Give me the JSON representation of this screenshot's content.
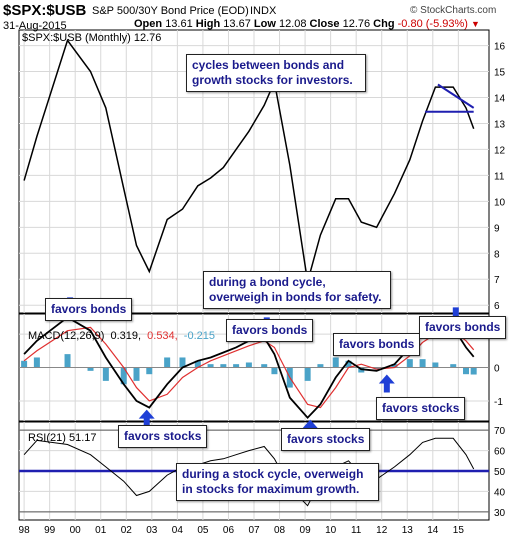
{
  "header": {
    "symbol": "$SPX:$USB",
    "description": "S&P 500/30Y Bond Price (EOD)",
    "exchange": "INDX",
    "date": "31-Aug-2015",
    "open_label": "Open",
    "open": "13.61",
    "high_label": "High",
    "high": "13.67",
    "low_label": "Low",
    "low": "12.08",
    "close_label": "Close",
    "close": "12.76",
    "chg_label": "Chg",
    "chg": "-0.80 (-5.93%)",
    "copyright": "© StockCharts.com"
  },
  "legends": {
    "price": "$SPX:$USB (Monthly) 12.76",
    "macd_prefix": "MACD(12,26,9)",
    "macd_value": "0.319,",
    "macd_signal": "0.534,",
    "macd_hist": "-0.215",
    "rsi": "RSI(21) 51.17"
  },
  "annotations": {
    "cycles": "cycles between bonds and growth stocks for investors.",
    "bond_cycle": "during a bond cycle, overweigh in bonds for safety.",
    "stock_cycle": "during a stock cycle, overweigh in stocks for maximum growth.",
    "favors_bonds_1": "favors bonds",
    "favors_bonds_2": "favors bonds",
    "favors_bonds_3": "favors bonds",
    "favors_bonds_4": "favors bonds",
    "favors_stocks_1": "favors stocks",
    "favors_stocks_2": "favors stocks",
    "favors_stocks_3": "favors stocks"
  },
  "colors": {
    "price_line": "#000000",
    "trend_line": "#1f1fb0",
    "macd_line": "#000000",
    "signal_line": "#e03030",
    "histogram": "#4aa3c8",
    "arrow": "#1f3fd6",
    "rsi_mid": "#1f1fb0"
  },
  "chart_data": [
    {
      "type": "line",
      "series": [
        {
          "name": "$SPX:$USB",
          "values": [
            10.8,
            12.5,
            16.2,
            15.0,
            13.6,
            10.5,
            8.3,
            7.3,
            9.3,
            9.7,
            10.6,
            10.9,
            11.3,
            12.0,
            12.7,
            13.7,
            14.6,
            11.4,
            6.9,
            8.7,
            10.1,
            10.1,
            9.2,
            9.0,
            10.3,
            11.6,
            13.1,
            14.4,
            14.4,
            13.6,
            12.8
          ]
        }
      ],
      "x": [
        1998.0,
        1998.5,
        1999.7,
        2000.6,
        2001.2,
        2001.9,
        2002.4,
        2002.9,
        2003.6,
        2004.2,
        2004.8,
        2005.3,
        2005.8,
        2006.3,
        2006.8,
        2007.4,
        2007.8,
        2008.4,
        2009.1,
        2009.6,
        2010.2,
        2010.7,
        2011.2,
        2011.8,
        2012.5,
        2013.1,
        2013.6,
        2014.1,
        2014.8,
        2015.3,
        2015.6
      ],
      "ylim": [
        5.7,
        16.6
      ],
      "yticks": [
        6,
        7,
        8,
        9,
        10,
        11,
        12,
        13,
        14,
        15,
        16
      ],
      "trend_lines": [
        {
          "x": [
            2013.7,
            2015.6
          ],
          "y": [
            13.45,
            13.45
          ]
        },
        {
          "x": [
            2014.2,
            2015.6
          ],
          "y": [
            14.5,
            13.6
          ]
        }
      ]
    },
    {
      "type": "line",
      "series": [
        {
          "name": "MACD",
          "values": [
            0.4,
            0.8,
            1.5,
            1.1,
            0.3,
            -0.5,
            -1.0,
            -1.2,
            -0.5,
            0.0,
            0.2,
            0.3,
            0.45,
            0.6,
            0.8,
            0.9,
            0.4,
            -0.9,
            -1.5,
            -1.1,
            -0.3,
            0.2,
            -0.05,
            -0.1,
            0.1,
            0.6,
            1.0,
            1.15,
            1.2,
            0.6,
            0.32
          ]
        },
        {
          "name": "Signal",
          "values": [
            0.2,
            0.5,
            1.1,
            1.2,
            0.7,
            0.0,
            -0.6,
            -1.0,
            -0.8,
            -0.3,
            0.0,
            0.2,
            0.35,
            0.5,
            0.65,
            0.8,
            0.6,
            -0.3,
            -1.1,
            -1.2,
            -0.6,
            0.0,
            0.1,
            -0.05,
            0.0,
            0.35,
            0.75,
            1.0,
            1.1,
            0.8,
            0.53
          ]
        },
        {
          "name": "Histogram",
          "values": [
            0.2,
            0.3,
            0.4,
            -0.1,
            -0.4,
            -0.5,
            -0.4,
            -0.2,
            0.3,
            0.3,
            0.2,
            0.1,
            0.1,
            0.1,
            0.15,
            0.1,
            -0.2,
            -0.6,
            -0.4,
            0.1,
            0.3,
            0.2,
            -0.15,
            -0.05,
            0.1,
            0.25,
            0.25,
            0.15,
            0.1,
            -0.2,
            -0.21
          ]
        }
      ],
      "ylim": [
        -1.6,
        1.6
      ],
      "yticks": [
        -1,
        0,
        1
      ]
    },
    {
      "type": "line",
      "series": [
        {
          "name": "RSI",
          "values": [
            58,
            65,
            63,
            58,
            52,
            45,
            38,
            40,
            48,
            52,
            53,
            55,
            56,
            58,
            60,
            62,
            56,
            42,
            33,
            45,
            52,
            55,
            48,
            46,
            52,
            58,
            64,
            66,
            66,
            58,
            51
          ]
        }
      ],
      "ylim": [
        26,
        74
      ],
      "yticks": [
        30,
        40,
        50,
        60,
        70
      ],
      "xticks": [
        "98",
        "99",
        "00",
        "01",
        "02",
        "03",
        "04",
        "05",
        "06",
        "07",
        "08",
        "09",
        "10",
        "11",
        "12",
        "13",
        "14",
        "15"
      ]
    }
  ]
}
